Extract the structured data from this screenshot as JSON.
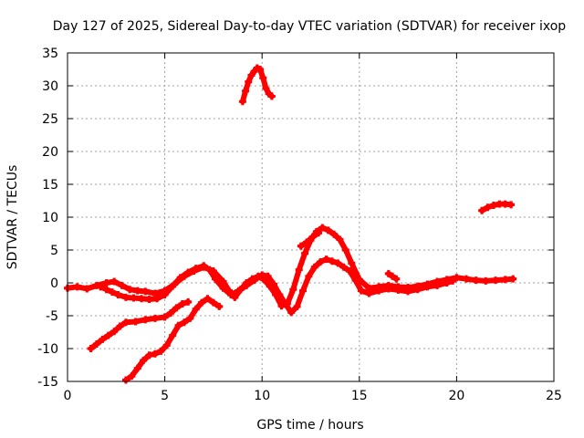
{
  "chart_data": {
    "type": "scatter",
    "title": "Day 127 of 2025, Sidereal Day-to-day VTEC variation (SDTVAR) for receiver ixop",
    "xlabel": "GPS time / hours",
    "ylabel": "SDTVAR / TECUs",
    "xlim": [
      0,
      25
    ],
    "ylim": [
      -15,
      35
    ],
    "xticks": [
      0,
      5,
      10,
      15,
      20,
      25
    ],
    "yticks": [
      -15,
      -10,
      -5,
      0,
      5,
      10,
      15,
      20,
      25,
      30,
      35
    ],
    "xtick_labels": [
      "0",
      "5",
      "10",
      "15",
      "20",
      "25"
    ],
    "ytick_labels": [
      "-15",
      "-10",
      "-5",
      "0",
      "5",
      "10",
      "15",
      "20",
      "25",
      "30",
      "35"
    ],
    "grid": true,
    "marker": "plus",
    "series_color": "#ff0000",
    "series": [
      {
        "name": "track-1",
        "x": [
          0.0,
          0.5,
          1.0,
          1.5,
          2.0,
          2.4,
          2.8,
          3.2,
          3.6,
          4.0,
          4.5,
          5.0,
          5.5,
          6.0,
          6.5,
          7.0,
          7.5,
          8.0,
          8.3,
          8.6,
          8.9,
          9.2,
          9.5,
          9.8,
          10.1,
          10.4,
          10.7,
          11.0,
          11.3,
          11.6,
          11.9,
          12.2,
          12.5,
          12.8,
          13.1,
          13.4,
          13.7,
          14.0,
          14.3,
          14.6,
          15.0,
          15.5,
          16.0,
          16.5,
          17.0,
          17.5,
          18.0,
          18.5,
          19.0,
          19.5,
          20.0,
          20.5,
          21.0,
          21.5,
          22.0,
          22.5,
          22.9
        ],
        "y": [
          -0.8,
          -0.6,
          -0.9,
          -0.4,
          0.0,
          0.2,
          -0.4,
          -1.0,
          -1.2,
          -1.3,
          -1.6,
          -1.2,
          -0.2,
          1.0,
          1.8,
          2.4,
          1.8,
          0.2,
          -1.2,
          -2.2,
          -1.0,
          0.0,
          0.6,
          1.0,
          0.5,
          -0.5,
          -1.8,
          -3.5,
          -3.2,
          -1.0,
          2.0,
          4.5,
          6.5,
          7.8,
          8.4,
          8.0,
          7.4,
          6.6,
          5.0,
          3.0,
          0.5,
          -0.8,
          -0.6,
          -0.4,
          -0.6,
          -0.7,
          -0.5,
          -0.2,
          0.2,
          0.5,
          0.8,
          0.6,
          0.4,
          0.3,
          0.4,
          0.5,
          0.6
        ]
      },
      {
        "name": "track-2",
        "x": [
          1.7,
          2.0,
          2.3,
          2.6,
          3.0,
          3.4,
          3.8,
          4.2,
          4.6,
          5.0,
          5.4,
          5.8,
          6.2,
          6.6,
          7.0,
          7.3,
          7.6,
          8.0,
          8.4,
          8.8,
          9.2,
          9.6,
          10.0,
          10.3,
          10.6,
          10.9,
          11.2,
          11.5,
          11.8,
          12.1,
          12.4,
          12.7,
          13.0,
          13.3,
          13.6,
          13.9,
          14.2,
          14.5,
          14.8,
          15.1,
          15.5,
          16.0,
          16.5,
          17.0,
          17.5,
          18.0,
          18.5,
          19.0,
          19.5,
          19.8
        ],
        "y": [
          -0.6,
          -1.0,
          -1.4,
          -1.8,
          -2.2,
          -2.3,
          -2.4,
          -2.5,
          -2.4,
          -1.8,
          -0.5,
          0.8,
          1.6,
          2.2,
          2.6,
          2.0,
          0.6,
          -0.8,
          -1.8,
          -1.2,
          -0.4,
          0.4,
          1.2,
          1.0,
          -0.2,
          -1.8,
          -3.2,
          -4.5,
          -3.6,
          -1.2,
          1.0,
          2.4,
          3.2,
          3.6,
          3.3,
          3.0,
          2.4,
          1.8,
          0.4,
          -1.2,
          -1.6,
          -1.2,
          -0.9,
          -1.1,
          -1.3,
          -1.0,
          -0.6,
          -0.4,
          0.0,
          0.3
        ]
      },
      {
        "name": "track-3",
        "x": [
          1.2,
          1.5,
          1.8,
          2.1,
          2.4,
          2.7,
          3.0,
          3.5,
          4.0,
          4.5,
          5.0,
          5.3,
          5.6,
          5.9,
          6.2
        ],
        "y": [
          -10.0,
          -9.3,
          -8.6,
          -8.0,
          -7.4,
          -6.6,
          -6.0,
          -5.9,
          -5.6,
          -5.4,
          -5.2,
          -4.6,
          -3.8,
          -3.2,
          -2.9
        ]
      },
      {
        "name": "track-4",
        "x": [
          3.0,
          3.3,
          3.6,
          3.9,
          4.2,
          4.5,
          4.8,
          5.1,
          5.4,
          5.7,
          6.0,
          6.3,
          6.6,
          6.9,
          7.2,
          7.5,
          7.8
        ],
        "y": [
          -14.8,
          -14.2,
          -13.0,
          -11.8,
          -11.0,
          -10.8,
          -10.4,
          -9.5,
          -8.0,
          -6.5,
          -6.0,
          -5.4,
          -4.0,
          -3.0,
          -2.4,
          -3.0,
          -3.6
        ]
      },
      {
        "name": "track-5",
        "x": [
          9.0,
          9.15,
          9.3,
          9.45,
          9.6,
          9.75,
          9.9,
          10.05,
          10.2,
          10.35,
          10.5
        ],
        "y": [
          27.6,
          29.2,
          30.6,
          31.6,
          32.2,
          32.7,
          32.5,
          31.2,
          29.6,
          28.8,
          28.4
        ]
      },
      {
        "name": "track-6",
        "x": [
          21.3,
          21.6,
          21.9,
          22.2,
          22.5,
          22.8
        ],
        "y": [
          11.0,
          11.5,
          11.8,
          12.0,
          12.0,
          11.9
        ]
      },
      {
        "name": "track-7",
        "x": [
          12.0,
          12.3,
          12.6,
          12.9
        ],
        "y": [
          5.6,
          6.2,
          7.0,
          7.6
        ]
      },
      {
        "name": "track-8",
        "x": [
          16.5,
          16.7,
          16.9
        ],
        "y": [
          1.4,
          1.0,
          0.6
        ]
      }
    ]
  }
}
